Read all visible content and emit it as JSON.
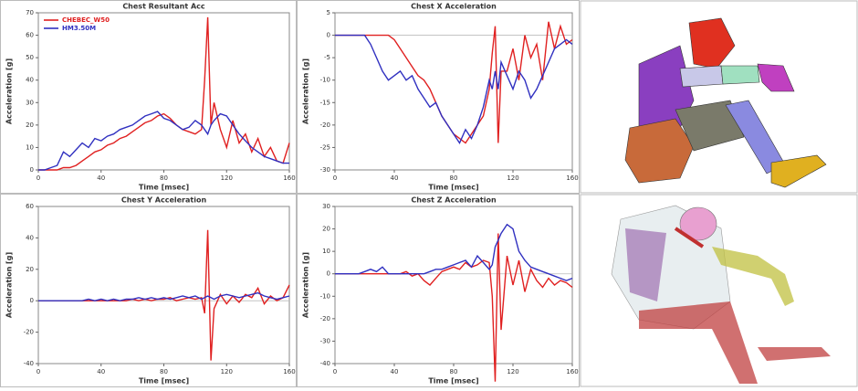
{
  "chart_data": [
    {
      "type": "line",
      "title": "Chest Resultant Acc",
      "xlabel": "Time [msec]",
      "ylabel": "Acceleration [g]",
      "x": [
        0,
        4,
        8,
        12,
        16,
        20,
        24,
        28,
        32,
        36,
        40,
        44,
        48,
        52,
        56,
        60,
        64,
        68,
        72,
        76,
        80,
        84,
        88,
        92,
        96,
        100,
        104,
        106,
        108,
        110,
        112,
        116,
        120,
        124,
        128,
        132,
        136,
        140,
        144,
        148,
        152,
        156,
        160
      ],
      "xlim": [
        0,
        160
      ],
      "xticks": [
        0,
        40,
        80,
        120,
        160
      ],
      "ylim": [
        0,
        70
      ],
      "yticks": [
        0,
        10,
        20,
        30,
        40,
        50,
        60,
        70
      ],
      "legend": "upper left",
      "series": [
        {
          "name": "CHEBEC_W50",
          "color": "#e02020",
          "values": [
            0,
            0,
            0,
            0,
            1,
            1,
            2,
            4,
            6,
            8,
            9,
            11,
            12,
            14,
            15,
            17,
            19,
            21,
            22,
            24,
            25,
            23,
            20,
            18,
            17,
            16,
            18,
            40,
            68,
            20,
            30,
            18,
            10,
            22,
            12,
            16,
            8,
            14,
            6,
            10,
            4,
            3,
            12
          ]
        },
        {
          "name": "HM3.50M",
          "color": "#3030c0",
          "values": [
            0,
            0,
            1,
            2,
            8,
            6,
            9,
            12,
            10,
            14,
            13,
            15,
            16,
            18,
            19,
            20,
            22,
            24,
            25,
            26,
            23,
            22,
            20,
            18,
            19,
            22,
            20,
            18,
            16,
            20,
            22,
            25,
            24,
            20,
            16,
            13,
            10,
            8,
            6,
            5,
            4,
            3,
            3
          ]
        }
      ]
    },
    {
      "type": "line",
      "title": "Chest X Acceleration",
      "xlabel": "Time [msec]",
      "ylabel": "Acceleration [g]",
      "x": [
        0,
        4,
        8,
        12,
        16,
        20,
        24,
        28,
        32,
        36,
        40,
        44,
        48,
        52,
        56,
        60,
        64,
        68,
        72,
        76,
        80,
        84,
        88,
        92,
        96,
        100,
        104,
        106,
        108,
        110,
        112,
        116,
        120,
        124,
        128,
        132,
        136,
        140,
        144,
        148,
        152,
        156,
        160
      ],
      "xlim": [
        0,
        160
      ],
      "xticks": [
        0,
        40,
        80,
        120,
        160
      ],
      "ylim": [
        -30,
        5
      ],
      "yticks": [
        -30,
        -25,
        -20,
        -15,
        -10,
        -5,
        0,
        5
      ],
      "series": [
        {
          "color": "#e02020",
          "values": [
            0,
            0,
            0,
            0,
            0,
            0,
            0,
            0,
            0,
            0,
            -1,
            -3,
            -5,
            -7,
            -9,
            -10,
            -12,
            -15,
            -18,
            -20,
            -22,
            -23,
            -24,
            -22,
            -20,
            -18,
            -12,
            -4,
            2,
            -24,
            -8,
            -8,
            -3,
            -10,
            0,
            -5,
            -2,
            -10,
            3,
            -3,
            2,
            -2,
            -1
          ]
        },
        {
          "color": "#3030c0",
          "values": [
            0,
            0,
            0,
            0,
            0,
            0,
            -2,
            -5,
            -8,
            -10,
            -9,
            -8,
            -10,
            -9,
            -12,
            -14,
            -16,
            -15,
            -18,
            -20,
            -22,
            -24,
            -21,
            -23,
            -20,
            -16,
            -10,
            -12,
            -8,
            -12,
            -6,
            -9,
            -12,
            -8,
            -10,
            -14,
            -12,
            -9,
            -6,
            -3,
            -2,
            -1,
            -2
          ]
        }
      ]
    },
    {
      "type": "line",
      "title": "Chest Y Acceleration",
      "xlabel": "Time [msec]",
      "ylabel": "Acceleration [g]",
      "x": [
        0,
        4,
        8,
        12,
        16,
        20,
        24,
        28,
        32,
        36,
        40,
        44,
        48,
        52,
        56,
        60,
        64,
        68,
        72,
        76,
        80,
        84,
        88,
        92,
        96,
        100,
        104,
        106,
        108,
        110,
        112,
        116,
        120,
        124,
        128,
        132,
        136,
        140,
        144,
        148,
        152,
        156,
        160
      ],
      "xlim": [
        0,
        160
      ],
      "xticks": [
        0,
        40,
        80,
        120,
        160
      ],
      "ylim": [
        -40,
        60
      ],
      "yticks": [
        -40,
        -20,
        0,
        20,
        40,
        60
      ],
      "series": [
        {
          "color": "#e02020",
          "values": [
            0,
            0,
            0,
            0,
            0,
            0,
            0,
            0,
            0,
            0,
            0,
            0,
            0,
            0,
            0,
            1,
            0,
            1,
            0,
            1,
            1,
            2,
            0,
            1,
            2,
            1,
            2,
            -8,
            45,
            -38,
            -5,
            4,
            -2,
            3,
            -1,
            4,
            2,
            8,
            -2,
            3,
            0,
            2,
            10
          ]
        },
        {
          "color": "#3030c0",
          "values": [
            0,
            0,
            0,
            0,
            0,
            0,
            0,
            0,
            1,
            0,
            1,
            0,
            1,
            0,
            1,
            1,
            2,
            1,
            2,
            1,
            2,
            1,
            2,
            3,
            2,
            3,
            1,
            2,
            3,
            2,
            1,
            3,
            4,
            3,
            2,
            3,
            4,
            5,
            3,
            2,
            1,
            2,
            3
          ]
        }
      ]
    },
    {
      "type": "line",
      "title": "Chest Z Acceleration",
      "xlabel": "Time [msec]",
      "ylabel": "Acceleration [g]",
      "x": [
        0,
        4,
        8,
        12,
        16,
        20,
        24,
        28,
        32,
        36,
        40,
        44,
        48,
        52,
        56,
        60,
        64,
        68,
        72,
        76,
        80,
        84,
        88,
        92,
        96,
        100,
        104,
        106,
        108,
        110,
        112,
        116,
        120,
        124,
        128,
        132,
        136,
        140,
        144,
        148,
        152,
        156,
        160
      ],
      "xlim": [
        0,
        160
      ],
      "xticks": [
        0,
        40,
        80,
        120,
        160
      ],
      "ylim": [
        -40,
        30
      ],
      "yticks": [
        -40,
        -30,
        -20,
        -10,
        0,
        10,
        20,
        30
      ],
      "series": [
        {
          "color": "#e02020",
          "values": [
            0,
            0,
            0,
            0,
            0,
            0,
            0,
            0,
            0,
            0,
            0,
            0,
            1,
            -1,
            0,
            -3,
            -5,
            -2,
            1,
            2,
            3,
            2,
            5,
            3,
            4,
            6,
            5,
            -10,
            -48,
            18,
            -25,
            8,
            -5,
            6,
            -8,
            2,
            -3,
            -6,
            -2,
            -5,
            -3,
            -4,
            -6
          ]
        },
        {
          "color": "#3030c0",
          "values": [
            0,
            0,
            0,
            0,
            0,
            1,
            2,
            1,
            3,
            0,
            0,
            0,
            0,
            0,
            0,
            0,
            1,
            2,
            2,
            3,
            4,
            5,
            6,
            3,
            8,
            5,
            2,
            4,
            12,
            15,
            18,
            22,
            20,
            10,
            6,
            3,
            2,
            1,
            0,
            -1,
            -2,
            -3,
            -2
          ]
        }
      ]
    }
  ]
}
